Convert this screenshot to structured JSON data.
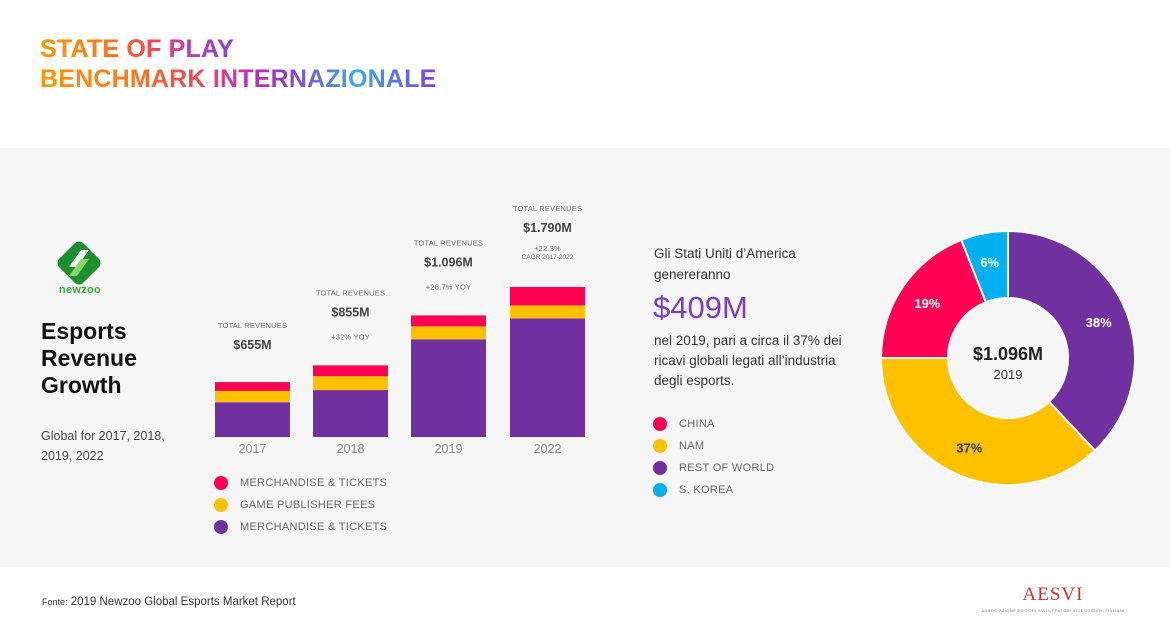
{
  "header": {
    "title_line1": "STATE OF PLAY",
    "title_line2": "BENCHMARK INTERNAZIONALE"
  },
  "brand": {
    "logo_text": "newzoo",
    "logo_color": "#2fae3c"
  },
  "left": {
    "heading_line1": "Esports",
    "heading_line2": "Revenue",
    "heading_line3": "Growth",
    "subtitle": "Global for 2017, 2018, 2019, 2022"
  },
  "colors": {
    "pink": "#ff0055",
    "yellow": "#ffc000",
    "purple": "#7030a0",
    "blue": "#00b0f0",
    "callout": "#7d3cc5"
  },
  "chart_data": [
    {
      "type": "bar",
      "stacked": true,
      "title": "Esports Revenue Growth",
      "categories": [
        "2017",
        "2018",
        "2019",
        "2022"
      ],
      "series": [
        {
          "name": "MERCHANDISE & TICKETS",
          "color": "#7030a0",
          "values": [
            415,
            560,
            1165,
            1415
          ]
        },
        {
          "name": "GAME PUBLISHER FEES",
          "color": "#ffc000",
          "values": [
            135,
            165,
            155,
            155
          ]
        },
        {
          "name": "MERCHANDISE & TICKETS",
          "color": "#ff0055",
          "values": [
            105,
            130,
            131,
            220
          ]
        }
      ],
      "totals_label": "TOTAL REVENUES",
      "totals": [
        "$655M",
        "$855M",
        "$1.096M",
        "$1.790M"
      ],
      "growth_notes": [
        "",
        "+32% YOY",
        "+26.7% YOY",
        "+22.3%"
      ],
      "growth_subnotes": [
        "",
        "",
        "",
        "CAGR 2017-2022"
      ],
      "legend": [
        {
          "label": "MERCHANDISE & TICKETS",
          "color": "#ff0055"
        },
        {
          "label": "GAME PUBLISHER FEES",
          "color": "#ffc000"
        },
        {
          "label": "MERCHANDISE & TICKETS",
          "color": "#7030a0"
        }
      ],
      "xlabel": "",
      "ylabel": "",
      "ylim": [
        0,
        1790
      ],
      "grid": false
    },
    {
      "type": "pie",
      "donut": true,
      "center_value": "$1.096M",
      "center_label": "2019",
      "slices": [
        {
          "name": "REST OF WORLD",
          "value": 38,
          "label": "38%",
          "color": "#7030a0",
          "label_color": "#ffffff"
        },
        {
          "name": "NAM",
          "value": 37,
          "label": "37%",
          "color": "#ffc000",
          "label_color": "#333333"
        },
        {
          "name": "CHINA",
          "value": 19,
          "label": "19%",
          "color": "#ff0055",
          "label_color": "#ffffff"
        },
        {
          "name": "S. KOREA",
          "value": 6,
          "label": "6%",
          "color": "#00b0f0",
          "label_color": "#ffffff"
        }
      ],
      "legend": [
        {
          "label": "CHINA",
          "color": "#ff0055"
        },
        {
          "label": "NAM",
          "color": "#ffc000"
        },
        {
          "label": "REST OF WORLD",
          "color": "#7030a0"
        },
        {
          "label": "S. KOREA",
          "color": "#00b0f0"
        }
      ]
    }
  ],
  "callout": {
    "intro": "Gli Stati Uniti d’America genereranno",
    "amount": "$409M",
    "body": "nel 2019, pari a circa il 37% dei ricavi globali legati all’industria degli esports."
  },
  "footer": {
    "source_label": "Fonte:",
    "source_text": "2019 Newzoo Global Esports Market Report",
    "org_name": "AESVI",
    "org_subtitle": "ASSOCIAZIONE EDITORI SVILUPPATORI VIDEOGIOCHI ITALIANI"
  }
}
